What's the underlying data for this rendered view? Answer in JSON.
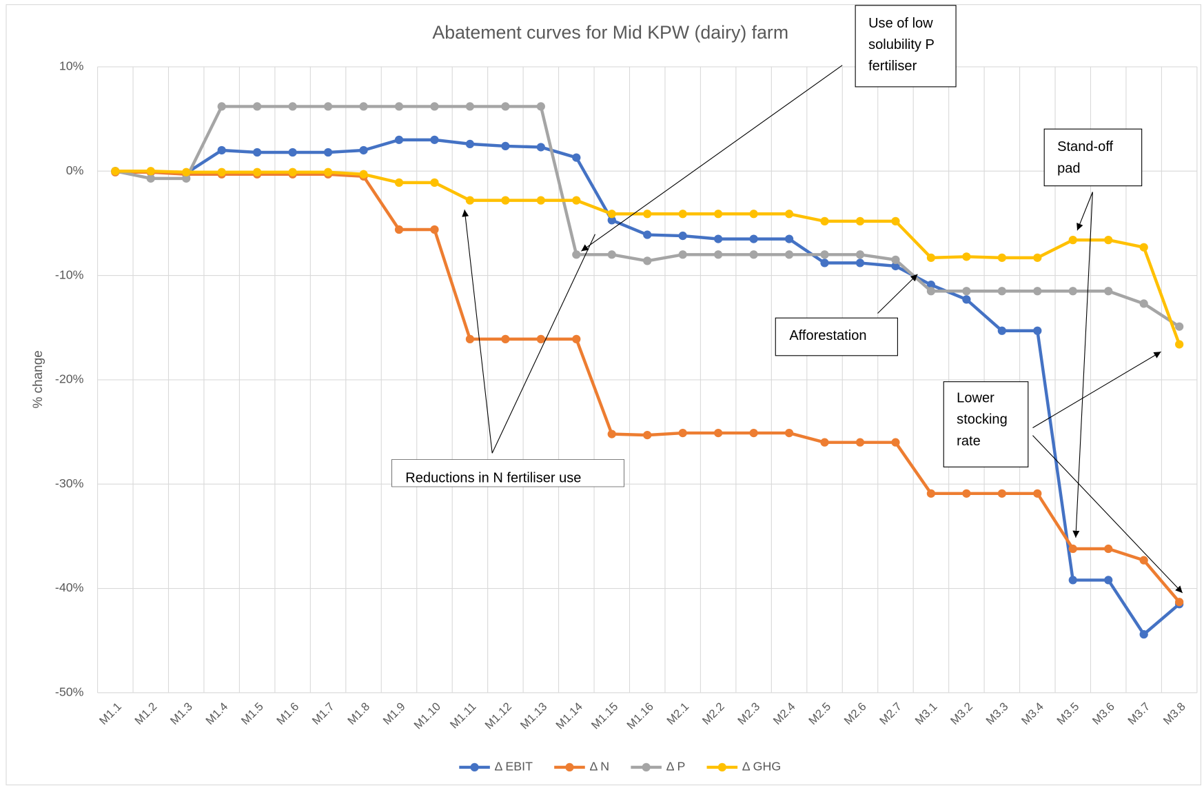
{
  "chart_data": {
    "type": "line",
    "title": "Abatement curves for Mid KPW (dairy) farm",
    "y_label": "% change",
    "categories": [
      "M1.1",
      "M1.2",
      "M1.3",
      "M1.4",
      "M1.5",
      "M1.6",
      "M1.7",
      "M1.8",
      "M1.9",
      "M1.10",
      "M1.11",
      "M1.12",
      "M1.13",
      "M1.14",
      "M1.15",
      "M1.16",
      "M2.1",
      "M2.2",
      "M2.3",
      "M2.4",
      "M2.5",
      "M2.6",
      "M2.7",
      "M3.1",
      "M3.2",
      "M3.3",
      "M3.4",
      "M3.5",
      "M3.6",
      "M3.7",
      "M3.8"
    ],
    "series": [
      {
        "name": "Δ EBIT",
        "color": "#4472c4",
        "values": [
          0,
          -0.1,
          -0.2,
          2.0,
          1.8,
          1.8,
          1.8,
          2.0,
          3.0,
          3.0,
          2.6,
          2.4,
          2.3,
          1.3,
          -4.7,
          -6.1,
          -6.2,
          -6.5,
          -6.5,
          -6.5,
          -8.8,
          -8.8,
          -9.1,
          -10.9,
          -12.3,
          -15.3,
          -15.3,
          -39.2,
          -39.2,
          -44.4,
          -41.5
        ]
      },
      {
        "name": "Δ N",
        "color": "#ed7d31",
        "values": [
          -0.1,
          -0.1,
          -0.3,
          -0.3,
          -0.3,
          -0.3,
          -0.3,
          -0.5,
          -5.6,
          -5.6,
          -16.1,
          -16.1,
          -16.1,
          -16.1,
          -25.2,
          -25.3,
          -25.1,
          -25.1,
          -25.1,
          -25.1,
          -26.0,
          -26.0,
          -26.0,
          -30.9,
          -30.9,
          -30.9,
          -30.9,
          -36.2,
          -36.2,
          -37.3,
          -41.3
        ]
      },
      {
        "name": "Δ P",
        "color": "#a5a5a5",
        "values": [
          0,
          -0.7,
          -0.7,
          6.2,
          6.2,
          6.2,
          6.2,
          6.2,
          6.2,
          6.2,
          6.2,
          6.2,
          6.2,
          -8.0,
          -8.0,
          -8.6,
          -8.0,
          -8.0,
          -8.0,
          -8.0,
          -8.0,
          -8.0,
          -8.5,
          -11.5,
          -11.5,
          -11.5,
          -11.5,
          -11.5,
          -11.5,
          -12.7,
          -14.9
        ]
      },
      {
        "name": "Δ GHG",
        "color": "#ffc000",
        "values": [
          0,
          0,
          -0.1,
          -0.1,
          -0.1,
          -0.1,
          -0.1,
          -0.3,
          -1.1,
          -1.1,
          -2.8,
          -2.8,
          -2.8,
          -2.8,
          -4.1,
          -4.1,
          -4.1,
          -4.1,
          -4.1,
          -4.1,
          -4.8,
          -4.8,
          -4.8,
          -8.3,
          -8.2,
          -8.3,
          -8.3,
          -6.6,
          -6.6,
          -7.3,
          -16.6
        ]
      }
    ],
    "ylim": [
      -50,
      10
    ],
    "yticks": [
      {
        "value": -50,
        "label": "-50%"
      },
      {
        "value": -40,
        "label": "-40%"
      },
      {
        "value": -30,
        "label": "-30%"
      },
      {
        "value": -20,
        "label": "-20%"
      },
      {
        "value": -10,
        "label": "-10%"
      },
      {
        "value": 0,
        "label": "0%"
      },
      {
        "value": 10,
        "label": "10%"
      }
    ],
    "grid": true,
    "legend": "bottom",
    "annotations": [
      {
        "lines": [
          "Use of low",
          "solubility P",
          "fertiliser"
        ]
      },
      {
        "lines": [
          "Stand-off",
          "pad"
        ]
      },
      {
        "lines": [
          "Afforestation"
        ]
      },
      {
        "lines": [
          "Lower",
          "stocking",
          "rate"
        ]
      },
      {
        "lines": [
          "Reductions in N fertiliser use"
        ]
      }
    ]
  }
}
